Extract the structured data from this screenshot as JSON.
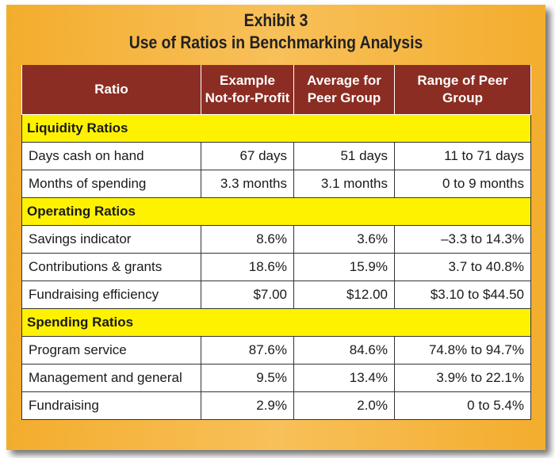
{
  "exhibit": {
    "number": "Exhibit 3",
    "title": "Use of Ratios in Benchmarking Analysis"
  },
  "table": {
    "headers": {
      "ratio": "Ratio",
      "example_line1": "Example",
      "example_line2": "Not-for-Profit",
      "average_line1": "Average for",
      "average_line2": "Peer Group",
      "range_line1": "Range of Peer",
      "range_line2": "Group"
    },
    "sections": [
      {
        "title": "Liquidity Ratios",
        "rows": [
          {
            "ratio": "Days cash on hand",
            "example": "67 days",
            "average": "51 days",
            "range": "11 to 71 days"
          },
          {
            "ratio": "Months of spending",
            "example": "3.3 months",
            "average": "3.1 months",
            "range": "0 to 9 months"
          }
        ]
      },
      {
        "title": "Operating Ratios",
        "rows": [
          {
            "ratio": "Savings indicator",
            "example": "8.6%",
            "average": "3.6%",
            "range": "–3.3 to 14.3%"
          },
          {
            "ratio": "Contributions & grants",
            "example": "18.6%",
            "average": "15.9%",
            "range": "3.7 to 40.8%"
          },
          {
            "ratio": "Fundraising efficiency",
            "example": "$7.00",
            "average": "$12.00",
            "range": "$3.10 to $44.50"
          }
        ]
      },
      {
        "title": "Spending Ratios",
        "rows": [
          {
            "ratio": "Program service",
            "example": "87.6%",
            "average": "84.6%",
            "range": "74.8% to 94.7%"
          },
          {
            "ratio": "Management and general",
            "example": "9.5%",
            "average": "13.4%",
            "range": "3.9% to 22.1%"
          },
          {
            "ratio": "Fundraising",
            "example": "2.9%",
            "average": "2.0%",
            "range": "0 to 5.4%"
          }
        ]
      }
    ]
  },
  "colors": {
    "panel": "#f5b43a",
    "header": "#8c2d23",
    "section": "#fff200"
  }
}
